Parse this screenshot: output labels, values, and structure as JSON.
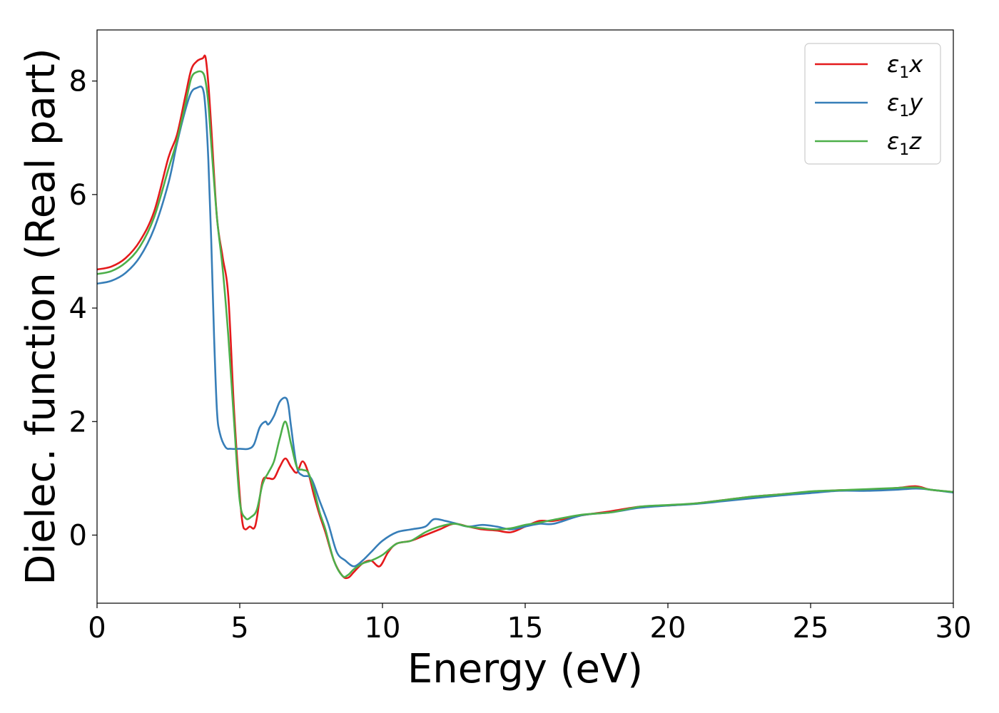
{
  "chart_data": {
    "type": "line",
    "title": "",
    "xlabel": "Energy (eV)",
    "ylabel": "Dielec. function (Real part)",
    "xlim": [
      0,
      30
    ],
    "ylim": [
      -1.2,
      8.9
    ],
    "xticks": [
      0,
      5,
      10,
      15,
      20,
      25,
      30
    ],
    "xtick_labels": [
      "0",
      "5",
      "10",
      "15",
      "20",
      "25",
      "30"
    ],
    "yticks": [
      0,
      2,
      4,
      6,
      8
    ],
    "ytick_labels": [
      "0",
      "2",
      "4",
      "6",
      "8"
    ],
    "grid": false,
    "legend_position": "top-right",
    "series": [
      {
        "name": "ε₁x",
        "legend_base": "ε",
        "legend_sub": "1",
        "legend_suffix": "x",
        "color": "#e41a1c",
        "x": [
          0,
          0.5,
          1,
          1.5,
          2,
          2.5,
          2.8,
          3.1,
          3.3,
          3.5,
          3.7,
          3.8,
          3.9,
          4.0,
          4.2,
          4.4,
          4.6,
          4.8,
          5.0,
          5.1,
          5.2,
          5.35,
          5.5,
          5.6,
          5.8,
          6.0,
          6.2,
          6.4,
          6.6,
          6.8,
          7.0,
          7.2,
          7.4,
          7.6,
          7.8,
          8.0,
          8.3,
          8.6,
          8.8,
          9.0,
          9.3,
          9.6,
          9.9,
          10.2,
          10.5,
          11.0,
          11.5,
          12.0,
          12.5,
          13.0,
          13.5,
          14.0,
          14.5,
          15.0,
          15.5,
          16.0,
          17.0,
          18.0,
          19.0,
          20.0,
          21.0,
          22.0,
          23.0,
          24.0,
          25.0,
          26.0,
          27.0,
          28.0,
          28.7,
          29.2,
          30.0
        ],
        "values": [
          4.68,
          4.73,
          4.88,
          5.18,
          5.7,
          6.65,
          7.05,
          7.75,
          8.2,
          8.35,
          8.4,
          8.42,
          7.95,
          7.2,
          5.6,
          4.9,
          4.2,
          2.2,
          0.7,
          0.2,
          0.1,
          0.15,
          0.12,
          0.3,
          0.95,
          1.0,
          1.0,
          1.2,
          1.35,
          1.2,
          1.1,
          1.3,
          1.1,
          0.7,
          0.35,
          0.05,
          -0.45,
          -0.72,
          -0.75,
          -0.65,
          -0.5,
          -0.45,
          -0.55,
          -0.3,
          -0.15,
          -0.1,
          0.0,
          0.1,
          0.2,
          0.15,
          0.1,
          0.08,
          0.05,
          0.15,
          0.25,
          0.25,
          0.35,
          0.42,
          0.5,
          0.52,
          0.56,
          0.62,
          0.68,
          0.72,
          0.76,
          0.79,
          0.8,
          0.83,
          0.86,
          0.8,
          0.76
        ]
      },
      {
        "name": "ε₁y",
        "legend_base": "ε",
        "legend_sub": "1",
        "legend_suffix": "y",
        "color": "#377eb8",
        "x": [
          0,
          0.5,
          1,
          1.5,
          2,
          2.5,
          2.8,
          3.1,
          3.3,
          3.5,
          3.7,
          3.8,
          3.9,
          4.0,
          4.1,
          4.2,
          4.3,
          4.5,
          4.7,
          5.0,
          5.3,
          5.5,
          5.7,
          5.9,
          6.0,
          6.2,
          6.4,
          6.6,
          6.7,
          6.8,
          7.0,
          7.2,
          7.5,
          7.8,
          8.1,
          8.4,
          8.7,
          9.0,
          9.3,
          9.6,
          10.0,
          10.5,
          11.0,
          11.5,
          11.8,
          12.2,
          12.6,
          13.0,
          13.5,
          14.0,
          14.5,
          15.0,
          15.5,
          16.0,
          17.0,
          18.0,
          19.0,
          20.0,
          21.0,
          22.0,
          23.0,
          24.0,
          25.0,
          26.0,
          27.0,
          28.0,
          28.7,
          29.2,
          30.0
        ],
        "values": [
          4.43,
          4.48,
          4.62,
          4.9,
          5.4,
          6.2,
          6.9,
          7.5,
          7.8,
          7.88,
          7.87,
          7.5,
          6.6,
          5.2,
          3.5,
          2.2,
          1.8,
          1.55,
          1.52,
          1.52,
          1.52,
          1.6,
          1.9,
          2.0,
          1.95,
          2.1,
          2.35,
          2.42,
          2.3,
          1.9,
          1.2,
          1.05,
          1.0,
          0.6,
          0.2,
          -0.3,
          -0.45,
          -0.55,
          -0.45,
          -0.3,
          -0.1,
          0.05,
          0.1,
          0.15,
          0.28,
          0.25,
          0.2,
          0.15,
          0.18,
          0.15,
          0.1,
          0.15,
          0.2,
          0.2,
          0.35,
          0.4,
          0.48,
          0.52,
          0.55,
          0.6,
          0.65,
          0.7,
          0.74,
          0.78,
          0.78,
          0.8,
          0.82,
          0.8,
          0.75
        ]
      },
      {
        "name": "ε₁z",
        "legend_base": "ε",
        "legend_sub": "1",
        "legend_suffix": "z",
        "color": "#4daf4a",
        "x": [
          0,
          0.5,
          1,
          1.5,
          2,
          2.5,
          2.8,
          3.1,
          3.3,
          3.5,
          3.7,
          3.8,
          3.9,
          4.0,
          4.2,
          4.4,
          4.6,
          4.8,
          5.0,
          5.2,
          5.4,
          5.6,
          5.8,
          6.0,
          6.2,
          6.4,
          6.6,
          6.8,
          7.0,
          7.2,
          7.4,
          7.6,
          7.8,
          8.0,
          8.3,
          8.6,
          8.8,
          9.0,
          9.3,
          9.6,
          10.0,
          10.5,
          11.0,
          11.5,
          12.0,
          12.5,
          13.0,
          13.5,
          14.0,
          14.5,
          15.0,
          15.5,
          16.0,
          17.0,
          18.0,
          19.0,
          20.0,
          21.0,
          22.0,
          23.0,
          24.0,
          25.0,
          26.0,
          27.0,
          28.0,
          28.7,
          29.2,
          30.0
        ],
        "values": [
          4.6,
          4.65,
          4.8,
          5.08,
          5.6,
          6.45,
          6.95,
          7.6,
          8.05,
          8.16,
          8.15,
          8.0,
          7.6,
          6.9,
          5.6,
          4.7,
          3.5,
          2.0,
          0.6,
          0.3,
          0.32,
          0.45,
          0.9,
          1.1,
          1.3,
          1.7,
          2.0,
          1.6,
          1.2,
          1.15,
          1.1,
          0.8,
          0.4,
          0.1,
          -0.45,
          -0.72,
          -0.7,
          -0.6,
          -0.5,
          -0.45,
          -0.35,
          -0.15,
          -0.1,
          0.05,
          0.15,
          0.2,
          0.15,
          0.12,
          0.1,
          0.12,
          0.18,
          0.22,
          0.27,
          0.36,
          0.4,
          0.5,
          0.53,
          0.56,
          0.62,
          0.68,
          0.72,
          0.77,
          0.79,
          0.81,
          0.83,
          0.84,
          0.8,
          0.76
        ]
      }
    ]
  }
}
